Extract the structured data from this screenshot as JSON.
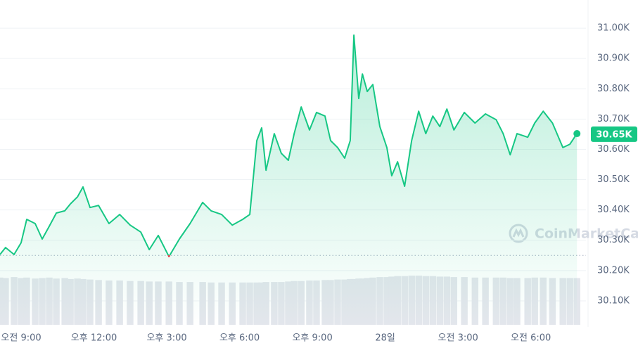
{
  "chart_data": {
    "type": "line",
    "x": [
      8.13,
      8.36,
      8.71,
      9.0,
      9.23,
      9.58,
      9.87,
      10.16,
      10.45,
      10.8,
      11.03,
      11.32,
      11.55,
      11.84,
      12.19,
      12.62,
      13.06,
      13.49,
      13.93,
      14.28,
      14.65,
      15.09,
      15.52,
      15.96,
      16.48,
      16.83,
      17.26,
      17.7,
      18.13,
      18.42,
      18.71,
      18.91,
      19.09,
      19.43,
      19.72,
      20.01,
      20.25,
      20.54,
      20.88,
      21.17,
      21.52,
      21.75,
      22.04,
      22.33,
      22.56,
      22.71,
      22.91,
      23.06,
      23.26,
      23.49,
      23.78,
      24.07,
      24.27,
      24.51,
      24.8,
      25.09,
      25.38,
      25.67,
      25.96,
      26.25,
      26.54,
      26.83,
      27.26,
      27.7,
      28.13,
      28.57,
      28.86,
      29.15,
      29.43,
      29.87,
      30.16,
      30.51,
      30.89,
      31.32,
      31.61,
      31.9
    ],
    "values": [
      30253,
      30276,
      30253,
      30292,
      30369,
      30355,
      30304,
      30346,
      30390,
      30397,
      30420,
      30443,
      30476,
      30408,
      30415,
      30355,
      30385,
      30350,
      30327,
      30269,
      30316,
      30246,
      30304,
      30355,
      30425,
      30397,
      30385,
      30350,
      30369,
      30385,
      30629,
      30671,
      30531,
      30652,
      30587,
      30564,
      30652,
      30740,
      30664,
      30722,
      30710,
      30629,
      30606,
      30571,
      30629,
      30977,
      30768,
      30849,
      30791,
      30814,
      30675,
      30606,
      30513,
      30559,
      30478,
      30629,
      30726,
      30652,
      30710,
      30675,
      30733,
      30664,
      30722,
      30687,
      30717,
      30698,
      30652,
      30582,
      30652,
      30640,
      30687,
      30726,
      30687,
      30606,
      30617,
      30652
    ],
    "volume": [
      96,
      95,
      97,
      95,
      96,
      94,
      95,
      96,
      94,
      95,
      93,
      94,
      93,
      92,
      91,
      90,
      90,
      89,
      89,
      88,
      88,
      88,
      87,
      87,
      87,
      86,
      86,
      86,
      86,
      86,
      86,
      86,
      87,
      87,
      87,
      88,
      89,
      89,
      90,
      90,
      91,
      91,
      92,
      92,
      93,
      93,
      94,
      94,
      95,
      96,
      97,
      97,
      98,
      99,
      99,
      100,
      100,
      99,
      99,
      98,
      98,
      97,
      97,
      96,
      96,
      96,
      96,
      95,
      95,
      95,
      96,
      96,
      95,
      95,
      95,
      95
    ],
    "color": "#16c784",
    "down_color": "#ea3943",
    "volume_color": "#e3e6ec",
    "reference": 30250,
    "current_price": {
      "value": 30650,
      "label": "30.65K"
    },
    "watermark": "CoinMarketCap",
    "xlim": [
      8.13,
      32.27
    ],
    "ylim": [
      30014,
      31093
    ],
    "xticks": [
      {
        "value": 9,
        "label": "오전 9:00"
      },
      {
        "value": 12,
        "label": "오후 12:00"
      },
      {
        "value": 15,
        "label": "오후 3:00"
      },
      {
        "value": 18,
        "label": "오후 6:00"
      },
      {
        "value": 21,
        "label": "오후 9:00"
      },
      {
        "value": 24,
        "label": "28일"
      },
      {
        "value": 27,
        "label": "오전 3:00"
      },
      {
        "value": 30,
        "label": "오전 6:00"
      }
    ],
    "yticks": [
      {
        "value": 30100,
        "label": "30.10K"
      },
      {
        "value": 30200,
        "label": "30.20K"
      },
      {
        "value": 30300,
        "label": "30.30K"
      },
      {
        "value": 30400,
        "label": "30.40K"
      },
      {
        "value": 30500,
        "label": "30.50K"
      },
      {
        "value": 30600,
        "label": "30.60K"
      },
      {
        "value": 30700,
        "label": "30.70K"
      },
      {
        "value": 30800,
        "label": "30.80K"
      },
      {
        "value": 30900,
        "label": "30.90K"
      },
      {
        "value": 31000,
        "label": "31.00K"
      }
    ],
    "grid": true
  }
}
